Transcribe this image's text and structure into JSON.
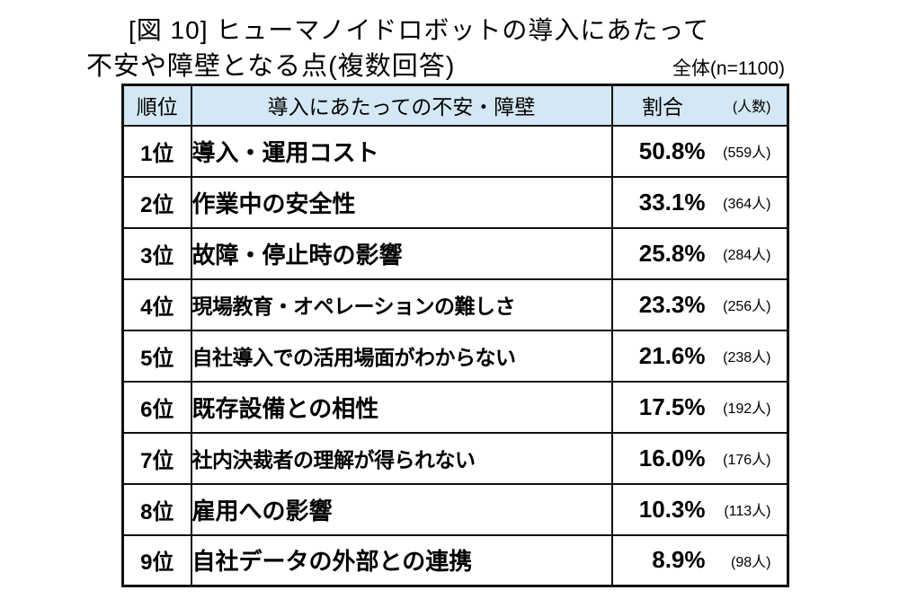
{
  "title": {
    "line1": "[図 10] ヒューマノイドロボットの導入にあたって",
    "line2": "不安や障壁となる点(複数回答)",
    "sample": "全体(n=1100)"
  },
  "table": {
    "headers": {
      "rank": "順位",
      "concern": "導入にあたっての不安・障壁",
      "ratio": "割合",
      "count": "(人数)"
    },
    "rows": [
      {
        "rank": "1位",
        "concern": "導入・運用コスト",
        "ratio": "50.8%",
        "count": "(559人)"
      },
      {
        "rank": "2位",
        "concern": "作業中の安全性",
        "ratio": "33.1%",
        "count": "(364人)"
      },
      {
        "rank": "3位",
        "concern": "故障・停止時の影響",
        "ratio": "25.8%",
        "count": "(284人)"
      },
      {
        "rank": "4位",
        "concern": "現場教育・オペレーションの難しさ",
        "ratio": "23.3%",
        "count": "(256人)"
      },
      {
        "rank": "5位",
        "concern": "自社導入での活用場面がわからない",
        "ratio": "21.6%",
        "count": "(238人)"
      },
      {
        "rank": "6位",
        "concern": "既存設備との相性",
        "ratio": "17.5%",
        "count": "(192人)"
      },
      {
        "rank": "7位",
        "concern": "社内決裁者の理解が得られない",
        "ratio": "16.0%",
        "count": "(176人)"
      },
      {
        "rank": "8位",
        "concern": "雇用への影響",
        "ratio": "10.3%",
        "count": "(113人)"
      },
      {
        "rank": "9位",
        "concern": "自社データの外部との連携",
        "ratio": "8.9%",
        "count": "(98人)"
      }
    ]
  },
  "colors": {
    "header_bg": "#d3e8f4",
    "border": "#111111",
    "text": "#000000"
  },
  "chart_data": {
    "type": "table",
    "title": "[図 10] ヒューマノイドロボットの導入にあたって不安や障壁となる点(複数回答)",
    "sample_label": "全体(n=1100)",
    "n": 1100,
    "columns": [
      "順位",
      "導入にあたっての不安・障壁",
      "割合",
      "(人数)"
    ],
    "categories": [
      "導入・運用コスト",
      "作業中の安全性",
      "故障・停止時の影響",
      "現場教育・オペレーションの難しさ",
      "自社導入での活用場面がわからない",
      "既存設備との相性",
      "社内決裁者の理解が得られない",
      "雇用への影響",
      "自社データの外部との連携"
    ],
    "percent_values": [
      50.8,
      33.1,
      25.8,
      23.3,
      21.6,
      17.5,
      16.0,
      10.3,
      8.9
    ],
    "counts": [
      559,
      364,
      284,
      256,
      238,
      192,
      176,
      113,
      98
    ]
  }
}
